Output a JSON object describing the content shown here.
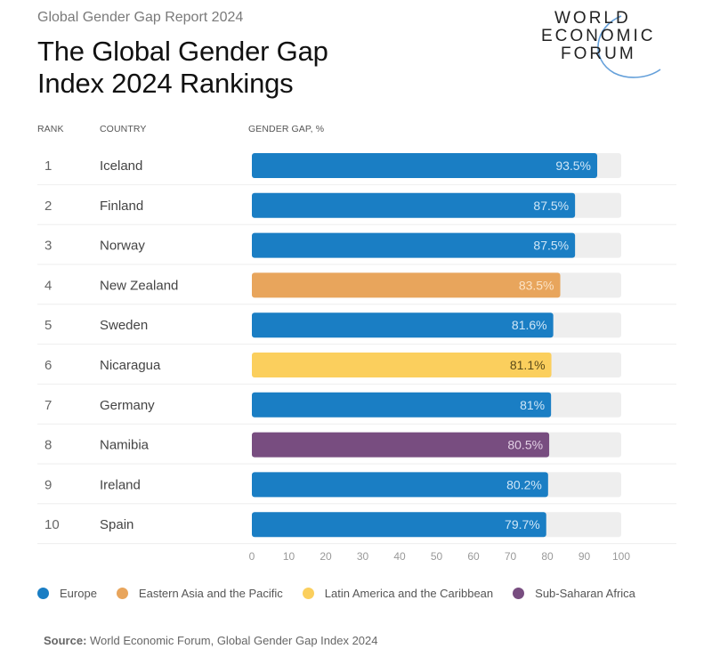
{
  "header": {
    "subtitle": "Global Gender Gap Report 2024",
    "title_line1": "The Global Gender Gap",
    "title_line2": "Index 2024 Rankings",
    "logo_lines": [
      "WORLD",
      "ECONOMIC",
      "FORUM"
    ]
  },
  "columns": {
    "rank": "RANK",
    "country": "COUNTRY",
    "gap": "GENDER GAP, %"
  },
  "regions": {
    "europe": {
      "label": "Europe",
      "color": "#1a7ec4",
      "text_color": "#cfe6f7"
    },
    "asia_pacific": {
      "label": "Eastern Asia and the Pacific",
      "color": "#e8a55c",
      "text_color": "#fbe3c6"
    },
    "latam": {
      "label": "Latin America and the Caribbean",
      "color": "#fbcf5d",
      "text_color": "#5a4a1a"
    },
    "ssa": {
      "label": "Sub-Saharan Africa",
      "color": "#784d80",
      "text_color": "#e1cfe4"
    }
  },
  "chart_data": {
    "type": "bar",
    "orientation": "horizontal",
    "title": "The Global Gender Gap Index 2024 Rankings",
    "xlabel": "GENDER GAP, %",
    "xlim": [
      0,
      100
    ],
    "xticks": [
      0,
      10,
      20,
      30,
      40,
      50,
      60,
      70,
      80,
      90,
      100
    ],
    "rows": [
      {
        "rank": "1",
        "country": "Iceland",
        "value": 93.5,
        "label": "93.5%",
        "region": "europe"
      },
      {
        "rank": "2",
        "country": "Finland",
        "value": 87.5,
        "label": "87.5%",
        "region": "europe"
      },
      {
        "rank": "3",
        "country": "Norway",
        "value": 87.5,
        "label": "87.5%",
        "region": "europe"
      },
      {
        "rank": "4",
        "country": "New Zealand",
        "value": 83.5,
        "label": "83.5%",
        "region": "asia_pacific"
      },
      {
        "rank": "5",
        "country": "Sweden",
        "value": 81.6,
        "label": "81.6%",
        "region": "europe"
      },
      {
        "rank": "6",
        "country": "Nicaragua",
        "value": 81.1,
        "label": "81.1%",
        "region": "latam"
      },
      {
        "rank": "7",
        "country": "Germany",
        "value": 81,
        "label": "81%",
        "region": "europe"
      },
      {
        "rank": "8",
        "country": "Namibia",
        "value": 80.5,
        "label": "80.5%",
        "region": "ssa"
      },
      {
        "rank": "9",
        "country": "Ireland",
        "value": 80.2,
        "label": "80.2%",
        "region": "europe"
      },
      {
        "rank": "10",
        "country": "Spain",
        "value": 79.7,
        "label": "79.7%",
        "region": "europe"
      }
    ],
    "legend": [
      "Europe",
      "Eastern Asia and the Pacific",
      "Latin America and the Caribbean",
      "Sub-Saharan Africa"
    ],
    "legend_position": "bottom"
  },
  "legend_items": [
    {
      "key": "europe",
      "label": "Europe"
    },
    {
      "key": "asia_pacific",
      "label": "Eastern Asia and the Pacific"
    },
    {
      "key": "latam",
      "label": "Latin America and the Caribbean"
    },
    {
      "key": "ssa",
      "label": "Sub-Saharan Africa"
    }
  ],
  "footer": {
    "source_label": "Source:",
    "source_text": " World Economic Forum, Global Gender Gap Index 2024"
  }
}
